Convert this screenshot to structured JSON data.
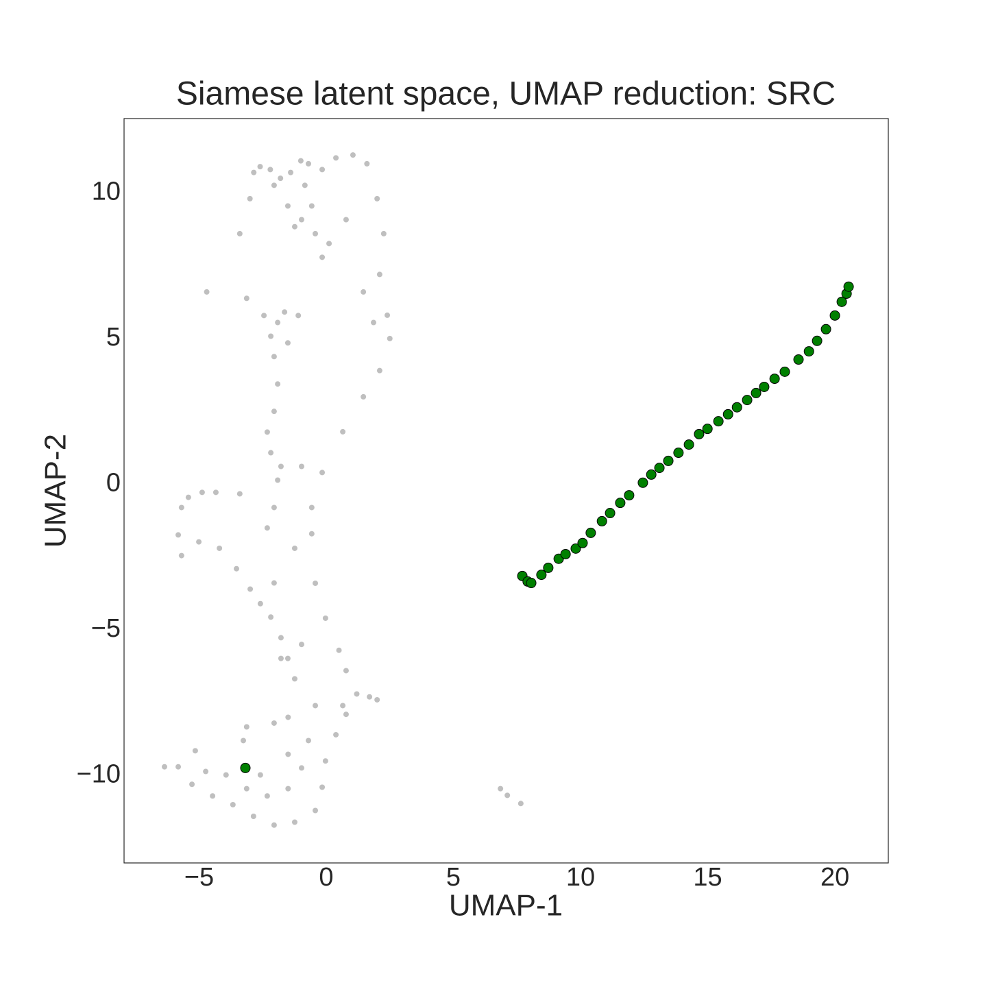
{
  "chart_data": {
    "type": "scatter",
    "title": "Siamese latent space, UMAP reduction: SRC",
    "x_label": "UMAP-1",
    "y_label": "UMAP-2",
    "xlim": [
      -7.95,
      22.1
    ],
    "ylim": [
      -13.0,
      12.55
    ],
    "xticks": [
      {
        "value": -5,
        "label": "−5"
      },
      0,
      5,
      10,
      15,
      20
    ],
    "yticks": [
      {
        "value": -10,
        "label": "−10"
      },
      {
        "value": -5,
        "label": "−5"
      },
      0,
      5,
      10
    ],
    "grid": false,
    "series": [
      {
        "color": "#707070",
        "x": [
          -4.7,
          -3.4,
          -3.0,
          -2.85,
          -2.6,
          -2.2,
          -1.8,
          -1.4,
          -1.0,
          -0.7,
          -0.16,
          0.38,
          1.05,
          1.6,
          2.0,
          2.26,
          2.1,
          2.4,
          2.5,
          2.1,
          1.46,
          0.65,
          -0.16,
          -0.57,
          -0.57,
          -0.43,
          -0.03,
          0.5,
          0.78,
          1.2,
          1.7,
          2.0,
          0.65,
          -0.43,
          -1.5,
          -2.05,
          0.78,
          0.38,
          -0.03,
          -0.16,
          -0.43,
          -1.24,
          -2.05,
          -2.86,
          -3.67,
          -4.47,
          -5.28,
          -6.36,
          -5.82,
          -5.15,
          -4.74,
          -3.94,
          -3.13,
          -2.32,
          -1.5,
          -0.97,
          -1.5,
          -0.7,
          -3.13,
          -3.26,
          -2.59,
          -5.69,
          -5.82,
          -5.69,
          -5.42,
          -4.88,
          -4.34,
          -5.01,
          -4.2,
          -3.53,
          -2.99,
          -2.59,
          -2.18,
          -1.78,
          -1.51,
          -1.24,
          -1.78,
          -0.97,
          -2.05,
          -2.32,
          -2.05,
          -1.91,
          -2.18,
          -1.78,
          -0.97,
          -1.24,
          -3.4,
          -2.05,
          -1.91,
          -2.05,
          -2.18,
          -1.91,
          -2.45,
          -1.64,
          -2.32,
          -1.51,
          -1.1,
          -3.13,
          1.46,
          1.86,
          -0.97,
          -0.43,
          0.11,
          -0.16,
          -0.57,
          -0.84,
          -1.51,
          -1.24,
          0.78,
          -2.05,
          7.12,
          7.65,
          6.85
        ],
        "values": [
          6.6,
          8.6,
          9.8,
          10.7,
          10.9,
          10.8,
          10.5,
          10.7,
          11.1,
          11.0,
          10.8,
          11.2,
          11.3,
          11.0,
          9.8,
          8.6,
          7.2,
          5.8,
          5.0,
          3.9,
          3.0,
          1.8,
          0.4,
          -0.8,
          -1.7,
          -3.4,
          -4.6,
          -5.7,
          -6.4,
          -7.2,
          -7.3,
          -7.4,
          -7.6,
          -7.6,
          -8.0,
          -8.2,
          -7.9,
          -8.6,
          -9.5,
          -10.4,
          -11.2,
          -11.6,
          -11.7,
          -11.4,
          -11.0,
          -10.7,
          -10.3,
          -9.7,
          -9.7,
          -9.15,
          -9.86,
          -9.98,
          -10.45,
          -10.7,
          -10.45,
          -9.74,
          -9.27,
          -8.8,
          -8.33,
          -8.8,
          -9.98,
          -0.8,
          -1.74,
          -2.45,
          -0.45,
          -0.28,
          -0.28,
          -1.98,
          -2.2,
          -2.9,
          -3.6,
          -4.1,
          -4.56,
          -5.27,
          -5.98,
          -6.68,
          -5.98,
          -5.5,
          -3.39,
          -1.5,
          -0.8,
          0.14,
          1.08,
          0.61,
          0.61,
          -2.2,
          -0.33,
          2.5,
          3.44,
          4.38,
          5.08,
          5.55,
          5.79,
          5.91,
          1.79,
          4.85,
          5.79,
          6.38,
          6.6,
          5.55,
          9.08,
          8.6,
          8.26,
          7.79,
          9.55,
          10.26,
          9.55,
          8.84,
          9.08,
          10.26,
          -10.68,
          -10.96,
          -10.45
        ]
      },
      {
        "color": "#008000",
        "x": [
          -3.18,
          7.71,
          7.92,
          8.06,
          8.46,
          8.73,
          9.14,
          9.41,
          9.81,
          10.08,
          10.4,
          10.84,
          11.16,
          11.56,
          11.91,
          12.45,
          12.78,
          13.1,
          13.45,
          13.85,
          14.26,
          14.66,
          14.99,
          15.42,
          15.8,
          16.15,
          16.55,
          16.9,
          17.22,
          17.63,
          18.03,
          18.57,
          18.98,
          19.3,
          19.65,
          20.0,
          20.27,
          20.46,
          20.54
        ],
        "values": [
          -9.74,
          -3.15,
          -3.34,
          -3.39,
          -3.11,
          -2.87,
          -2.56,
          -2.4,
          -2.21,
          -2.02,
          -1.67,
          -1.27,
          -0.99,
          -0.64,
          -0.38,
          0.05,
          0.33,
          0.56,
          0.8,
          1.08,
          1.36,
          1.72,
          1.9,
          2.16,
          2.4,
          2.64,
          2.89,
          3.13,
          3.34,
          3.62,
          3.86,
          4.28,
          4.56,
          4.92,
          5.32,
          5.79,
          6.26,
          6.54,
          6.78
        ]
      }
    ]
  }
}
